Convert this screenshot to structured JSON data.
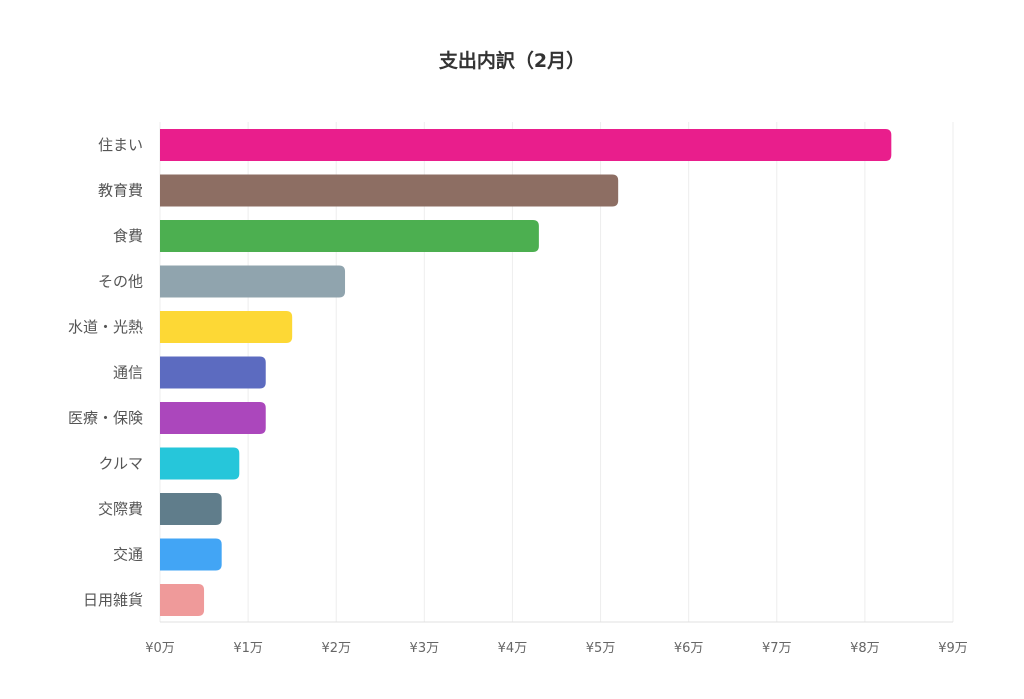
{
  "chart_data": {
    "type": "bar",
    "orientation": "horizontal",
    "title": "支出内訳（2月）",
    "xlabel": "",
    "ylabel": "",
    "xlim": [
      0,
      90000
    ],
    "grid": true,
    "legend": "none",
    "categories": [
      "住まい",
      "教育費",
      "食費",
      "その他",
      "水道・光熱",
      "通信",
      "医療・保険",
      "クルマ",
      "交際費",
      "交通",
      "日用雑貨"
    ],
    "values": [
      83000,
      52000,
      43000,
      21000,
      15000,
      12000,
      12000,
      9000,
      7000,
      7000,
      5000
    ],
    "colors": [
      "#e91e8c",
      "#8d6e63",
      "#4caf50",
      "#90a4ae",
      "#fdd835",
      "#5c6bc0",
      "#ab47bc",
      "#26c6da",
      "#607d8b",
      "#42a5f5",
      "#ef9a9a"
    ],
    "ticks": [
      0,
      10000,
      20000,
      30000,
      40000,
      50000,
      60000,
      70000,
      80000,
      90000
    ],
    "tick_labels": [
      "¥0万",
      "¥1万",
      "¥2万",
      "¥3万",
      "¥4万",
      "¥5万",
      "¥6万",
      "¥7万",
      "¥8万",
      "¥9万"
    ]
  }
}
